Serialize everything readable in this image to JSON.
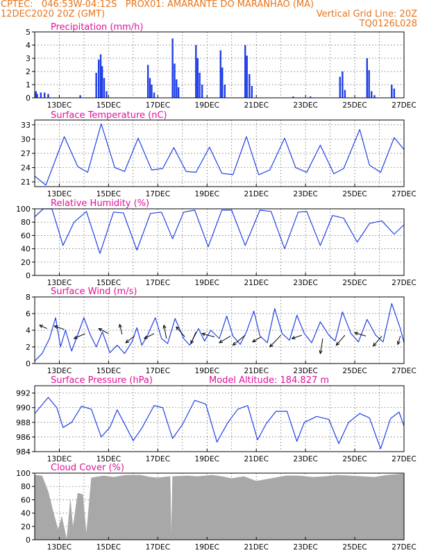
{
  "header": {
    "line1_left": "CPTEC:   046:53W-04:12S   PROX01: AMARANTE DO MARANHAO (MA)",
    "line2_left": "12DEC2020 20Z (GMT)",
    "line2_right": "Vertical Grid Line: 20Z",
    "line3_right": "TQ0126L028"
  },
  "colors": {
    "header": "#e8731a",
    "panel_title": "#e0109a",
    "series": "#1f3fe6",
    "cloud": "#a8a8a8",
    "wind_arrow": "#000000",
    "grid": "#555555"
  },
  "x_tick_labels": [
    "13DEC",
    "15DEC",
    "17DEC",
    "19DEC",
    "21DEC",
    "23DEC",
    "25DEC",
    "27DEC"
  ],
  "chart_data": [
    {
      "id": "precip",
      "type": "bar",
      "title": "Precipitation (mm/h)",
      "ylim": [
        0,
        5
      ],
      "yticks": [
        0,
        1,
        2,
        3,
        4,
        5
      ],
      "grid": true,
      "x_unit": "days since 12DEC2020 20Z",
      "events": [
        {
          "day": 0.05,
          "value": 0.5
        },
        {
          "day": 0.1,
          "value": 0.3
        },
        {
          "day": 0.25,
          "value": 0.4
        },
        {
          "day": 0.4,
          "value": 0.4
        },
        {
          "day": 0.55,
          "value": 0.3
        },
        {
          "day": 1.85,
          "value": 0.2
        },
        {
          "day": 2.5,
          "value": 1.9
        },
        {
          "day": 2.6,
          "value": 2.9
        },
        {
          "day": 2.68,
          "value": 3.3
        },
        {
          "day": 2.74,
          "value": 2.4
        },
        {
          "day": 2.82,
          "value": 1.5
        },
        {
          "day": 2.92,
          "value": 0.5
        },
        {
          "day": 4.6,
          "value": 2.5
        },
        {
          "day": 4.68,
          "value": 1.5
        },
        {
          "day": 4.75,
          "value": 1.0
        },
        {
          "day": 4.85,
          "value": 0.4
        },
        {
          "day": 5.6,
          "value": 4.5
        },
        {
          "day": 5.68,
          "value": 2.6
        },
        {
          "day": 5.76,
          "value": 1.4
        },
        {
          "day": 5.84,
          "value": 0.8
        },
        {
          "day": 6.55,
          "value": 4.0
        },
        {
          "day": 6.62,
          "value": 3.0
        },
        {
          "day": 6.7,
          "value": 1.9
        },
        {
          "day": 6.8,
          "value": 1.0
        },
        {
          "day": 7.55,
          "value": 3.6
        },
        {
          "day": 7.62,
          "value": 2.3
        },
        {
          "day": 7.72,
          "value": 1.0
        },
        {
          "day": 8.55,
          "value": 4.0
        },
        {
          "day": 8.62,
          "value": 3.2
        },
        {
          "day": 8.72,
          "value": 1.8
        },
        {
          "day": 8.82,
          "value": 0.9
        },
        {
          "day": 10.5,
          "value": 0.1
        },
        {
          "day": 11.2,
          "value": 0.1
        },
        {
          "day": 12.4,
          "value": 1.6
        },
        {
          "day": 12.5,
          "value": 2.0
        },
        {
          "day": 12.6,
          "value": 0.6
        },
        {
          "day": 13.5,
          "value": 3.0
        },
        {
          "day": 13.58,
          "value": 2.1
        },
        {
          "day": 13.68,
          "value": 0.5
        },
        {
          "day": 13.8,
          "value": 0.2
        },
        {
          "day": 14.5,
          "value": 1.0
        },
        {
          "day": 14.6,
          "value": 0.7
        }
      ]
    },
    {
      "id": "temp",
      "type": "line",
      "title": "Surface Temperature (nC)",
      "ylim": [
        20,
        34
      ],
      "yticks": [
        21,
        24,
        27,
        30,
        33
      ],
      "grid": true,
      "points": [
        [
          0,
          22.2
        ],
        [
          0.45,
          20.3
        ],
        [
          1.2,
          30.5
        ],
        [
          1.75,
          24.2
        ],
        [
          2.15,
          23
        ],
        [
          2.7,
          33.2
        ],
        [
          3.25,
          24
        ],
        [
          3.65,
          23.2
        ],
        [
          4.2,
          30.2
        ],
        [
          4.75,
          23.5
        ],
        [
          5.2,
          23.8
        ],
        [
          5.65,
          28.2
        ],
        [
          6.15,
          23.2
        ],
        [
          6.55,
          23
        ],
        [
          7.1,
          28.3
        ],
        [
          7.6,
          22.8
        ],
        [
          8.05,
          22.5
        ],
        [
          8.6,
          30.5
        ],
        [
          9.1,
          22.5
        ],
        [
          9.55,
          23.5
        ],
        [
          10.15,
          30.2
        ],
        [
          10.6,
          24
        ],
        [
          11.05,
          23
        ],
        [
          11.6,
          28.7
        ],
        [
          12.15,
          22.7
        ],
        [
          12.55,
          23.8
        ],
        [
          13.2,
          32
        ],
        [
          13.6,
          24.5
        ],
        [
          14.05,
          23
        ],
        [
          14.6,
          30.3
        ],
        [
          15,
          27.8
        ]
      ]
    },
    {
      "id": "rh",
      "type": "line",
      "title": "Relative Humidity (%)",
      "ylim": [
        0,
        100
      ],
      "yticks": [
        0,
        20,
        40,
        60,
        80,
        100
      ],
      "grid": true,
      "points": [
        [
          0,
          88
        ],
        [
          0.35,
          100
        ],
        [
          0.7,
          100
        ],
        [
          1.15,
          45
        ],
        [
          1.6,
          80
        ],
        [
          2.1,
          96
        ],
        [
          2.65,
          33
        ],
        [
          3.2,
          95
        ],
        [
          3.6,
          94
        ],
        [
          4.15,
          38
        ],
        [
          4.7,
          93
        ],
        [
          5.15,
          95
        ],
        [
          5.6,
          55
        ],
        [
          6.05,
          95
        ],
        [
          6.5,
          98
        ],
        [
          7.05,
          43
        ],
        [
          7.6,
          98
        ],
        [
          8.0,
          98
        ],
        [
          8.55,
          45
        ],
        [
          9.15,
          98
        ],
        [
          9.6,
          96
        ],
        [
          10.15,
          40
        ],
        [
          10.7,
          95
        ],
        [
          11.05,
          96
        ],
        [
          11.6,
          45
        ],
        [
          12.1,
          90
        ],
        [
          12.55,
          86
        ],
        [
          13.1,
          50
        ],
        [
          13.6,
          78
        ],
        [
          14.1,
          82
        ],
        [
          14.6,
          62
        ],
        [
          15,
          76
        ]
      ]
    },
    {
      "id": "wind",
      "type": "line",
      "title": "Surface Wind (m/s)",
      "ylim": [
        0,
        8
      ],
      "yticks": [
        0,
        2,
        4,
        6,
        8
      ],
      "grid": true,
      "points": [
        [
          0,
          0.3
        ],
        [
          0.3,
          1.2
        ],
        [
          0.6,
          3
        ],
        [
          0.85,
          5.5
        ],
        [
          1.05,
          2
        ],
        [
          1.25,
          4
        ],
        [
          1.5,
          1.5
        ],
        [
          1.75,
          3.5
        ],
        [
          2,
          5.5
        ],
        [
          2.25,
          3.5
        ],
        [
          2.5,
          2
        ],
        [
          2.75,
          3.8
        ],
        [
          3.05,
          1.3
        ],
        [
          3.35,
          2.2
        ],
        [
          3.65,
          1.2
        ],
        [
          3.95,
          2.6
        ],
        [
          4.15,
          4.3
        ],
        [
          4.35,
          2.2
        ],
        [
          4.55,
          3.2
        ],
        [
          4.9,
          5.5
        ],
        [
          5.15,
          3.0
        ],
        [
          5.4,
          2.4
        ],
        [
          5.7,
          5.4
        ],
        [
          6.05,
          3.0
        ],
        [
          6.3,
          2.2
        ],
        [
          6.65,
          4.2
        ],
        [
          6.9,
          2.7
        ],
        [
          7.15,
          4.0
        ],
        [
          7.5,
          3.0
        ],
        [
          7.8,
          5.7
        ],
        [
          8.05,
          3.3
        ],
        [
          8.35,
          2.3
        ],
        [
          8.6,
          3.8
        ],
        [
          8.9,
          6.3
        ],
        [
          9.15,
          3.3
        ],
        [
          9.45,
          2.5
        ],
        [
          9.75,
          6.6
        ],
        [
          10.05,
          3.6
        ],
        [
          10.35,
          2.8
        ],
        [
          10.65,
          5.8
        ],
        [
          10.95,
          3.6
        ],
        [
          11.25,
          2.5
        ],
        [
          11.6,
          5.0
        ],
        [
          11.95,
          3.4
        ],
        [
          12.2,
          2.7
        ],
        [
          12.5,
          6.2
        ],
        [
          12.85,
          3.6
        ],
        [
          13.15,
          2.6
        ],
        [
          13.5,
          5.3
        ],
        [
          13.85,
          3.4
        ],
        [
          14.15,
          2.6
        ],
        [
          14.5,
          7.2
        ],
        [
          14.85,
          4.2
        ],
        [
          15,
          2.5
        ]
      ],
      "arrows": [
        {
          "day": 0.5,
          "value": 4.2,
          "dx": -0.3,
          "dy": 0.1
        },
        {
          "day": 1.2,
          "value": 4.1,
          "dx": -0.4,
          "dy": 0.1
        },
        {
          "day": 2.05,
          "value": 3.6,
          "dx": -0.45,
          "dy": -0.15
        },
        {
          "day": 3.0,
          "value": 3.6,
          "dx": -0.4,
          "dy": 0.15
        },
        {
          "day": 3.55,
          "value": 3.5,
          "dx": -0.1,
          "dy": 0.3
        },
        {
          "day": 4.05,
          "value": 3.3,
          "dx": -0.35,
          "dy": -0.2
        },
        {
          "day": 4.85,
          "value": 3.6,
          "dx": -0.4,
          "dy": -0.15
        },
        {
          "day": 5.35,
          "value": 3.0,
          "dx": -0.1,
          "dy": 0.4
        },
        {
          "day": 6.1,
          "value": 3.2,
          "dx": -0.35,
          "dy": 0.3
        },
        {
          "day": 6.55,
          "value": 3.8,
          "dx": -0.2,
          "dy": -0.35
        },
        {
          "day": 7.3,
          "value": 3.2,
          "dx": -0.5,
          "dy": 0.1
        },
        {
          "day": 7.95,
          "value": 3.3,
          "dx": -0.45,
          "dy": -0.2
        },
        {
          "day": 8.55,
          "value": 3.4,
          "dx": -0.5,
          "dy": -0.3
        },
        {
          "day": 9.2,
          "value": 3.2,
          "dx": -0.35,
          "dy": -0.15
        },
        {
          "day": 10.0,
          "value": 3.4,
          "dx": -0.45,
          "dy": -0.35
        },
        {
          "day": 10.85,
          "value": 3.4,
          "dx": -0.4,
          "dy": -0.1
        },
        {
          "day": 11.7,
          "value": 3.0,
          "dx": -0.1,
          "dy": -0.45
        },
        {
          "day": 12.6,
          "value": 3.4,
          "dx": -0.35,
          "dy": -0.3
        },
        {
          "day": 13.45,
          "value": 3.3,
          "dx": -0.45,
          "dy": 0.1
        },
        {
          "day": 14.1,
          "value": 3.3,
          "dx": -0.35,
          "dy": -0.3
        },
        {
          "day": 14.85,
          "value": 3.3,
          "dx": -0.1,
          "dy": -0.25
        }
      ]
    },
    {
      "id": "pressure",
      "type": "line",
      "title": "Surface Pressure (hPa)",
      "subtitle": "Model Altitude: 184.827 m",
      "ylim": [
        984,
        993
      ],
      "yticks": [
        984,
        986,
        988,
        990,
        992
      ],
      "grid": true,
      "points": [
        [
          0,
          989.2
        ],
        [
          0.55,
          991.4
        ],
        [
          0.9,
          990
        ],
        [
          1.15,
          987.3
        ],
        [
          1.5,
          988
        ],
        [
          1.9,
          990.2
        ],
        [
          2.3,
          989.8
        ],
        [
          2.7,
          986
        ],
        [
          3.05,
          987.3
        ],
        [
          3.35,
          989.7
        ],
        [
          3.6,
          988.1
        ],
        [
          4.0,
          985.5
        ],
        [
          4.35,
          987.2
        ],
        [
          4.85,
          990.3
        ],
        [
          5.2,
          990
        ],
        [
          5.6,
          985.8
        ],
        [
          6.0,
          987.7
        ],
        [
          6.5,
          991
        ],
        [
          6.95,
          990.5
        ],
        [
          7.4,
          985.3
        ],
        [
          7.85,
          988
        ],
        [
          8.25,
          989.8
        ],
        [
          8.65,
          990.3
        ],
        [
          9.05,
          985.6
        ],
        [
          9.4,
          987.8
        ],
        [
          9.8,
          989.5
        ],
        [
          10.25,
          989.5
        ],
        [
          10.65,
          985.4
        ],
        [
          10.95,
          988
        ],
        [
          11.45,
          988.8
        ],
        [
          11.95,
          988.4
        ],
        [
          12.35,
          985.1
        ],
        [
          12.75,
          988
        ],
        [
          13.2,
          989.2
        ],
        [
          13.6,
          988.6
        ],
        [
          14.05,
          984.4
        ],
        [
          14.45,
          988.5
        ],
        [
          14.8,
          989.4
        ],
        [
          15,
          987.5
        ]
      ]
    },
    {
      "id": "cloud",
      "type": "area",
      "title": "Cloud Cover (%)",
      "ylim": [
        0,
        100
      ],
      "yticks": [
        0,
        20,
        40,
        60,
        80,
        100
      ],
      "grid": true,
      "points": [
        [
          0,
          97
        ],
        [
          0.3,
          96
        ],
        [
          0.55,
          72
        ],
        [
          0.75,
          42
        ],
        [
          0.95,
          15
        ],
        [
          1.1,
          35
        ],
        [
          1.3,
          0
        ],
        [
          1.45,
          60
        ],
        [
          1.55,
          18
        ],
        [
          1.75,
          70
        ],
        [
          1.95,
          68
        ],
        [
          2.1,
          8
        ],
        [
          2.3,
          93
        ],
        [
          2.8,
          96
        ],
        [
          3.2,
          94
        ],
        [
          3.7,
          97
        ],
        [
          4.3,
          97
        ],
        [
          4.7,
          94
        ],
        [
          5.0,
          93
        ],
        [
          5.5,
          95
        ],
        [
          5.55,
          0
        ],
        [
          5.6,
          95
        ],
        [
          6.2,
          96
        ],
        [
          6.6,
          95
        ],
        [
          7.2,
          97
        ],
        [
          7.6,
          95
        ],
        [
          8.0,
          92
        ],
        [
          8.5,
          95
        ],
        [
          9.0,
          88
        ],
        [
          9.6,
          92
        ],
        [
          10.2,
          96
        ],
        [
          10.7,
          96
        ],
        [
          11.3,
          94
        ],
        [
          11.8,
          95
        ],
        [
          12.3,
          97
        ],
        [
          12.8,
          96
        ],
        [
          13.3,
          95
        ],
        [
          13.8,
          94
        ],
        [
          14.3,
          97
        ],
        [
          15,
          99
        ]
      ]
    }
  ]
}
